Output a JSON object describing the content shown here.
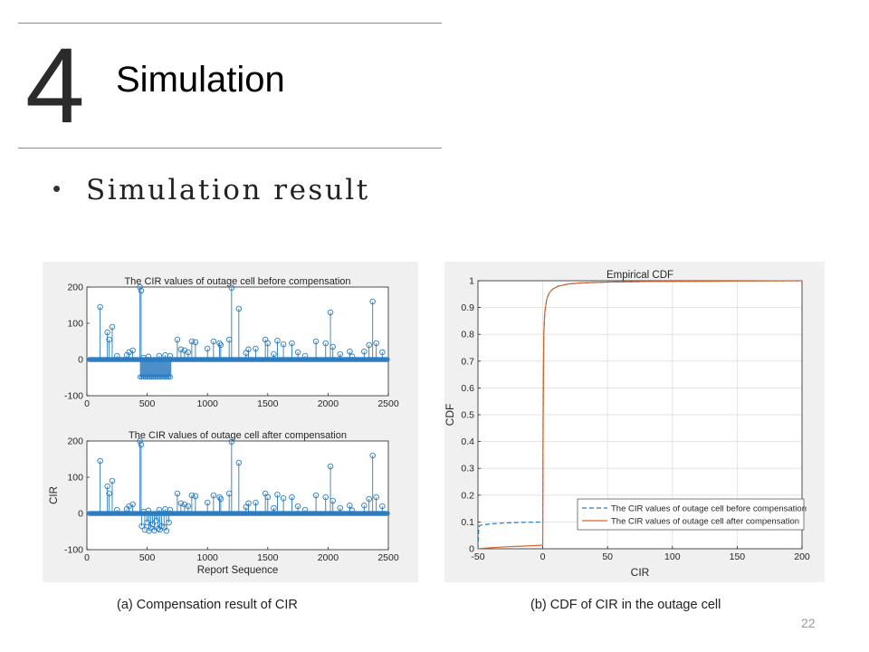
{
  "slide": {
    "section_number": "4",
    "section_title": "Simulation",
    "bullet": "Simulation result",
    "caption_a": "(a) Compensation result of CIR",
    "caption_b": "(b) CDF of CIR in the outage cell",
    "page_number": "22"
  },
  "colors": {
    "stem": "#2a7bc0",
    "before": "#2a7bc0",
    "after": "#d9642a",
    "panel_bg": "#f0f0f0"
  },
  "chart_data": [
    {
      "type": "scatter",
      "style": "stem",
      "title": "The CIR values of outage cell before compensation",
      "xlabel": "",
      "ylabel": "",
      "xlim": [
        0,
        2500
      ],
      "ylim": [
        -100,
        200
      ],
      "xticks": [
        "0",
        "500",
        "1000",
        "1500",
        "2000",
        "2500"
      ],
      "yticks": [
        "-100",
        "0",
        "100",
        "200"
      ],
      "outage_band": {
        "x": [
          440,
          700
        ],
        "y_min": -48
      },
      "x": [
        110,
        170,
        185,
        210,
        250,
        330,
        350,
        380,
        440,
        450,
        470,
        510,
        600,
        650,
        690,
        750,
        780,
        810,
        840,
        870,
        900,
        1000,
        1050,
        1100,
        1110,
        1180,
        1200,
        1260,
        1320,
        1340,
        1400,
        1480,
        1500,
        1550,
        1580,
        1630,
        1700,
        1750,
        1810,
        1900,
        1980,
        2020,
        2040,
        2100,
        2180,
        2200,
        2300,
        2340,
        2370,
        2400,
        2450
      ],
      "y": [
        145,
        75,
        55,
        90,
        10,
        12,
        20,
        25,
        200,
        190,
        5,
        8,
        10,
        12,
        10,
        55,
        28,
        25,
        20,
        50,
        48,
        30,
        50,
        45,
        40,
        55,
        198,
        140,
        18,
        28,
        30,
        55,
        45,
        15,
        52,
        42,
        45,
        20,
        10,
        50,
        45,
        130,
        35,
        15,
        22,
        8,
        22,
        40,
        160,
        45,
        20
      ]
    },
    {
      "type": "scatter",
      "style": "stem",
      "title": "The CIR values of outage cell after compensation",
      "xlabel": "Report Sequence",
      "ylabel": "CIR",
      "xlim": [
        0,
        2500
      ],
      "ylim": [
        -100,
        200
      ],
      "xticks": [
        "0",
        "500",
        "1000",
        "1500",
        "2000",
        "2500"
      ],
      "yticks": [
        "-100",
        "0",
        "100",
        "200"
      ],
      "x": [
        110,
        170,
        185,
        210,
        250,
        330,
        350,
        380,
        440,
        450,
        470,
        510,
        600,
        650,
        690,
        750,
        780,
        810,
        840,
        870,
        900,
        1000,
        1050,
        1100,
        1110,
        1180,
        1200,
        1260,
        1320,
        1340,
        1400,
        1480,
        1500,
        1550,
        1580,
        1630,
        1700,
        1750,
        1810,
        1900,
        1980,
        2020,
        2040,
        2100,
        2180,
        2200,
        2300,
        2340,
        2370,
        2400,
        2450,
        455,
        480,
        500,
        515,
        530,
        545,
        560,
        575,
        590,
        605,
        620,
        640,
        660,
        680
      ],
      "y": [
        145,
        75,
        55,
        90,
        10,
        12,
        20,
        25,
        200,
        190,
        5,
        8,
        10,
        12,
        10,
        55,
        28,
        25,
        20,
        50,
        48,
        30,
        50,
        45,
        40,
        55,
        198,
        140,
        18,
        28,
        30,
        55,
        45,
        15,
        52,
        42,
        45,
        20,
        10,
        50,
        45,
        130,
        35,
        15,
        22,
        8,
        22,
        40,
        160,
        45,
        20,
        -35,
        -45,
        -25,
        -48,
        -40,
        -30,
        -47,
        -20,
        -42,
        -45,
        -35,
        -38,
        -48,
        -25
      ]
    },
    {
      "type": "line",
      "title": "Empirical CDF",
      "xlabel": "CIR",
      "ylabel": "CDF",
      "xlim": [
        -50,
        200
      ],
      "ylim": [
        0,
        1
      ],
      "xticks": [
        "-50",
        "0",
        "50",
        "100",
        "150",
        "200"
      ],
      "yticks": [
        "0",
        "0.1",
        "0.2",
        "0.3",
        "0.4",
        "0.5",
        "0.6",
        "0.7",
        "0.8",
        "0.9",
        "1"
      ],
      "grid": true,
      "legend_position": "bottom-right",
      "series": [
        {
          "name": "The CIR values of outage cell before compensation",
          "x": [
            -50,
            -49.5,
            -49,
            -48,
            -45,
            -40,
            -30,
            -20,
            -10,
            0,
            0.3,
            0.8,
            1.5,
            3,
            5,
            8,
            12,
            20,
            30,
            50,
            80,
            120,
            160,
            200
          ],
          "y": [
            0,
            0.06,
            0.085,
            0.088,
            0.09,
            0.093,
            0.096,
            0.098,
            0.099,
            0.1,
            0.5,
            0.8,
            0.88,
            0.93,
            0.955,
            0.97,
            0.98,
            0.988,
            0.992,
            0.995,
            0.997,
            0.998,
            0.999,
            1
          ]
        },
        {
          "name": "The CIR values of outage cell after compensation",
          "x": [
            -50,
            -45,
            -40,
            -30,
            -20,
            -10,
            -1,
            0,
            0.3,
            0.8,
            1.5,
            3,
            5,
            8,
            12,
            20,
            30,
            50,
            80,
            120,
            160,
            200
          ],
          "y": [
            0,
            0.002,
            0.004,
            0.007,
            0.009,
            0.011,
            0.013,
            0.013,
            0.5,
            0.8,
            0.88,
            0.93,
            0.955,
            0.97,
            0.98,
            0.988,
            0.992,
            0.995,
            0.997,
            0.998,
            0.999,
            1
          ]
        }
      ]
    }
  ]
}
